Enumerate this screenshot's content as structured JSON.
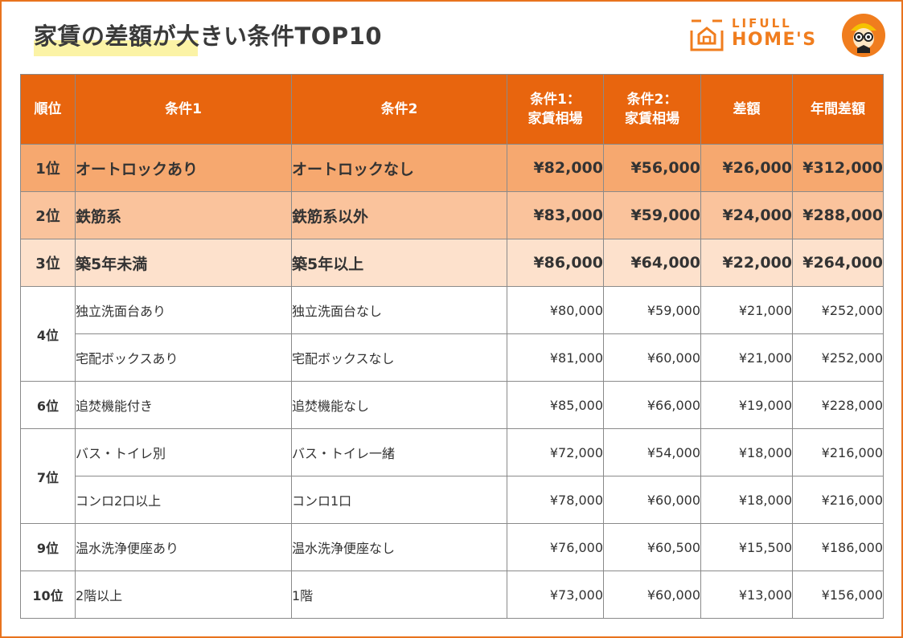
{
  "title": "家賃の差額が大きい条件TOP10",
  "brand": {
    "line1": "LIFULL",
    "line2": "HOME'S",
    "accent": "#f07d1e"
  },
  "colors": {
    "header": "#e8650e",
    "row1": "#f6a86f",
    "row2": "#fac39c",
    "row3": "#fde1cc"
  },
  "table": {
    "headers": {
      "rank": "順位",
      "cond1": "条件1",
      "cond2": "条件2",
      "rent1_line1": "条件1：",
      "rent1_line2": "家賃相場",
      "rent2_line1": "条件2：",
      "rent2_line2": "家賃相場",
      "diff": "差額",
      "annual": "年間差額"
    },
    "rows": [
      {
        "rank": "1位",
        "cond1": "オートロックあり",
        "cond2": "オートロックなし",
        "rent1": "¥82,000",
        "rent2": "¥56,000",
        "diff": "¥26,000",
        "annual": "¥312,000"
      },
      {
        "rank": "2位",
        "cond1": "鉄筋系",
        "cond2": "鉄筋系以外",
        "rent1": "¥83,000",
        "rent2": "¥59,000",
        "diff": "¥24,000",
        "annual": "¥288,000"
      },
      {
        "rank": "3位",
        "cond1": "築5年未満",
        "cond2": "築5年以上",
        "rent1": "¥86,000",
        "rent2": "¥64,000",
        "diff": "¥22,000",
        "annual": "¥264,000"
      },
      {
        "rank": "4位",
        "cond1": "独立洗面台あり",
        "cond2": "独立洗面台なし",
        "rent1": "¥80,000",
        "rent2": "¥59,000",
        "diff": "¥21,000",
        "annual": "¥252,000"
      },
      {
        "rank": "",
        "cond1": "宅配ボックスあり",
        "cond2": "宅配ボックスなし",
        "rent1": "¥81,000",
        "rent2": "¥60,000",
        "diff": "¥21,000",
        "annual": "¥252,000"
      },
      {
        "rank": "6位",
        "cond1": "追焚機能付き",
        "cond2": "追焚機能なし",
        "rent1": "¥85,000",
        "rent2": "¥66,000",
        "diff": "¥19,000",
        "annual": "¥228,000"
      },
      {
        "rank": "7位",
        "cond1": "バス・トイレ別",
        "cond2": "バス・トイレ一緒",
        "rent1": "¥72,000",
        "rent2": "¥54,000",
        "diff": "¥18,000",
        "annual": "¥216,000"
      },
      {
        "rank": "",
        "cond1": "コンロ2口以上",
        "cond2": "コンロ1口",
        "rent1": "¥78,000",
        "rent2": "¥60,000",
        "diff": "¥18,000",
        "annual": "¥216,000"
      },
      {
        "rank": "9位",
        "cond1": "温水洗浄便座あり",
        "cond2": "温水洗浄便座なし",
        "rent1": "¥76,000",
        "rent2": "¥60,500",
        "diff": "¥15,500",
        "annual": "¥186,000"
      },
      {
        "rank": "10位",
        "cond1": "2階以上",
        "cond2": "1階",
        "rent1": "¥73,000",
        "rent2": "¥60,000",
        "diff": "¥13,000",
        "annual": "¥156,000"
      }
    ]
  }
}
